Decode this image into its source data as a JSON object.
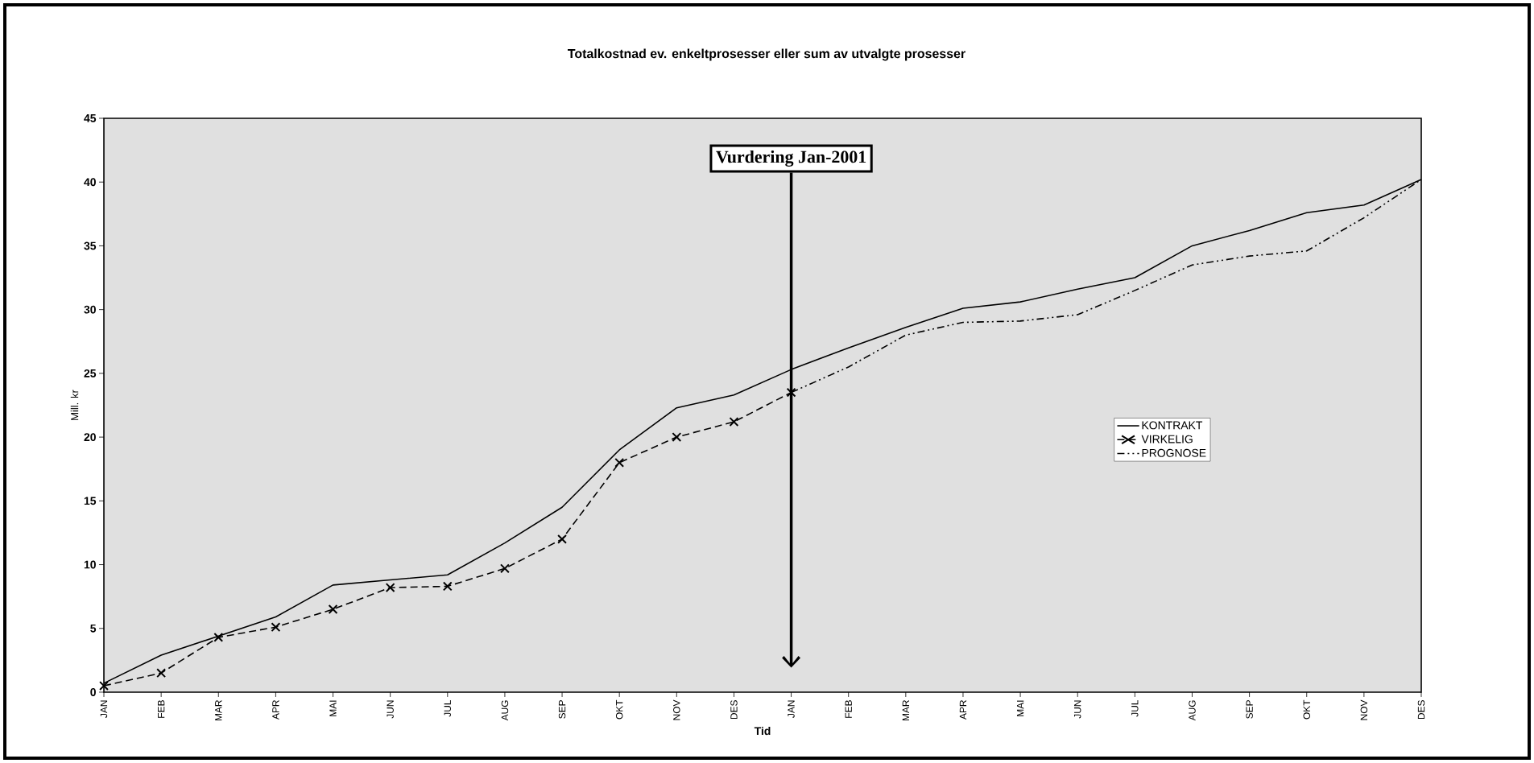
{
  "chart_data": {
    "type": "line",
    "title": "Totalkostnad ev. enkeltprosesser eller sum av utvalgte prosesser",
    "xlabel": "Tid",
    "ylabel": "Mill. kr",
    "categories": [
      "JAN",
      "FEB",
      "MAR",
      "APR",
      "MAI",
      "JUN",
      "JUL",
      "AUG",
      "SEP",
      "OKT",
      "NOV",
      "DES",
      "JAN",
      "FEB",
      "MAR",
      "APR",
      "MAI",
      "JUN",
      "JUL",
      "AUG",
      "SEP",
      "OKT",
      "NOV",
      "DES"
    ],
    "series": [
      {
        "name": "KONTRAKT",
        "color": "#000000",
        "line_style": "solid",
        "marker": "none",
        "values": [
          0.7,
          2.9,
          4.4,
          5.9,
          8.4,
          8.8,
          9.2,
          11.7,
          14.5,
          19,
          22.3,
          23.3,
          25.3,
          27,
          28.6,
          30.1,
          30.6,
          31.6,
          32.5,
          35,
          36.2,
          37.6,
          38.2,
          40.2
        ]
      },
      {
        "name": "VIRKELIG",
        "color": "#000000",
        "line_style": "dashed",
        "marker": "cross",
        "values": [
          0.5,
          1.5,
          4.3,
          5.1,
          6.5,
          8.2,
          8.3,
          9.7,
          12,
          18,
          20,
          21.2,
          23.5,
          null,
          null,
          null,
          null,
          null,
          null,
          null,
          null,
          null,
          null,
          null
        ]
      },
      {
        "name": "PROGNOSE",
        "color": "#000000",
        "line_style": "dashdot",
        "marker": "none",
        "values": [
          null,
          null,
          null,
          null,
          null,
          null,
          null,
          null,
          null,
          null,
          null,
          null,
          23.5,
          25.5,
          28,
          29,
          29.1,
          29.6,
          31.5,
          33.5,
          34.2,
          34.6,
          37.2,
          40.2
        ]
      }
    ],
    "annotations": [
      "Vurdering Jan-2001"
    ],
    "ylim": [
      0,
      45
    ],
    "yticks": [
      0,
      5,
      10,
      15,
      20,
      25,
      30,
      35,
      40,
      45
    ],
    "legend": "right",
    "grid": false
  }
}
